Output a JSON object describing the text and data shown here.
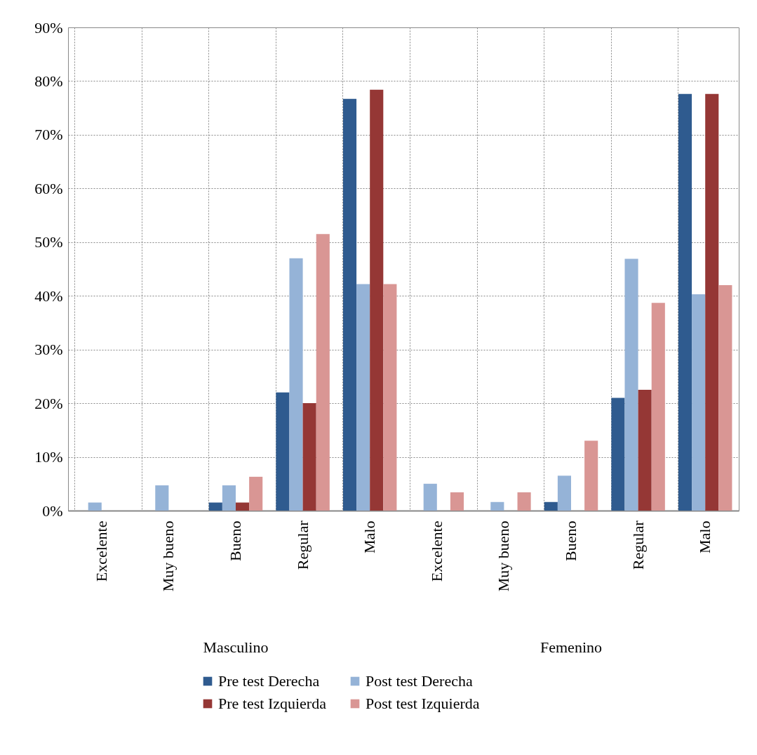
{
  "chart_data": {
    "type": "bar",
    "categories": [
      "Excelente",
      "Muy bueno",
      "Bueno",
      "Regular",
      "Malo",
      "Excelente",
      "Muy bueno",
      "Bueno",
      "Regular",
      "Malo"
    ],
    "ylim": [
      0,
      90
    ],
    "yticks": [
      {
        "value": 0,
        "label": "0%"
      },
      {
        "value": 10,
        "label": "10%"
      },
      {
        "value": 20,
        "label": "20%"
      },
      {
        "value": 30,
        "label": "30%"
      },
      {
        "value": 40,
        "label": "40%"
      },
      {
        "value": 50,
        "label": "50%"
      },
      {
        "value": 60,
        "label": "60%"
      },
      {
        "value": 70,
        "label": "70%"
      },
      {
        "value": 80,
        "label": "80%"
      },
      {
        "value": 90,
        "label": "90%"
      }
    ],
    "grid": true,
    "legend": "bottom",
    "annotations": [
      "Masculino",
      "Femenino"
    ],
    "series": [
      {
        "name": "Pre test Derecha",
        "color": "#2f5b8f",
        "values": [
          null,
          null,
          1.5,
          22,
          76.7,
          null,
          null,
          1.6,
          21,
          77.6
        ]
      },
      {
        "name": "Post test Derecha",
        "color": "#95b3d7",
        "values": [
          1.5,
          4.7,
          4.7,
          47,
          42.2,
          5,
          1.6,
          6.5,
          46.9,
          40.3
        ]
      },
      {
        "name": "Pre test Izquierda",
        "color": "#953735",
        "values": [
          null,
          null,
          1.5,
          20,
          78.4,
          null,
          null,
          null,
          22.5,
          77.6
        ]
      },
      {
        "name": "Post test  Izquierda",
        "color": "#d99694",
        "values": [
          null,
          null,
          6.3,
          51.5,
          42.2,
          3.4,
          3.4,
          13,
          38.7,
          42
        ]
      }
    ]
  }
}
